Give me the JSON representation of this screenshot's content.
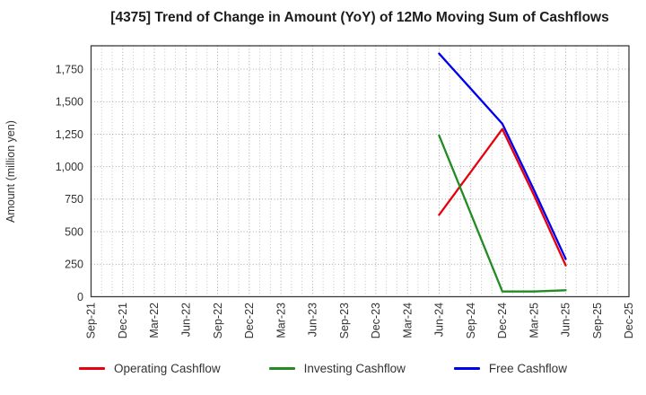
{
  "title": "[4375]  Trend of Change in Amount (YoY) of 12Mo Moving Sum of Cashflows",
  "colors": {
    "grid_minor": "#bdbdbd",
    "grid_major": "#9a9a9a",
    "spine": "#3a3a3a",
    "tick_text": "#333333"
  },
  "chart_data": {
    "type": "line",
    "title": "[4375]  Trend of Change in Amount (YoY) of 12Mo Moving Sum of Cashflows",
    "xlabel": "",
    "ylabel": "Amount (million yen)",
    "x": [
      "Sep-21",
      "Dec-21",
      "Mar-22",
      "Jun-22",
      "Sep-22",
      "Dec-22",
      "Mar-23",
      "Jun-23",
      "Sep-23",
      "Dec-23",
      "Mar-24",
      "Jun-24",
      "Sep-24",
      "Dec-24",
      "Mar-25",
      "Jun-25",
      "Sep-25",
      "Dec-25"
    ],
    "ylim": [
      0,
      1930
    ],
    "yticks": [
      0,
      250,
      500,
      750,
      1000,
      1250,
      1500,
      1750
    ],
    "grid": true,
    "grid_style": "dotted",
    "legend_position": "bottom",
    "series": [
      {
        "name": "Operating Cashflow",
        "color": "#e8000d",
        "points": [
          {
            "x": "Jun-24",
            "y": 630
          },
          {
            "x": "Sep-24",
            "y": 960
          },
          {
            "x": "Dec-24",
            "y": 1290
          },
          {
            "x": "Mar-25",
            "y": 780
          },
          {
            "x": "Jun-25",
            "y": 240
          }
        ]
      },
      {
        "name": "Investing Cashflow",
        "color": "#228b22",
        "points": [
          {
            "x": "Jun-24",
            "y": 1240
          },
          {
            "x": "Sep-24",
            "y": 640
          },
          {
            "x": "Dec-24",
            "y": 40
          },
          {
            "x": "Mar-25",
            "y": 40
          },
          {
            "x": "Jun-25",
            "y": 50
          }
        ]
      },
      {
        "name": "Free Cashflow",
        "color": "#0000ee",
        "points": [
          {
            "x": "Jun-24",
            "y": 1870
          },
          {
            "x": "Sep-24",
            "y": 1600
          },
          {
            "x": "Dec-24",
            "y": 1330
          },
          {
            "x": "Mar-25",
            "y": 820
          },
          {
            "x": "Jun-25",
            "y": 290
          }
        ]
      }
    ]
  },
  "legend": {
    "items": [
      {
        "label": "Operating Cashflow",
        "color": "#e8000d"
      },
      {
        "label": "Investing Cashflow",
        "color": "#228b22"
      },
      {
        "label": "Free Cashflow",
        "color": "#0000ee"
      }
    ]
  }
}
